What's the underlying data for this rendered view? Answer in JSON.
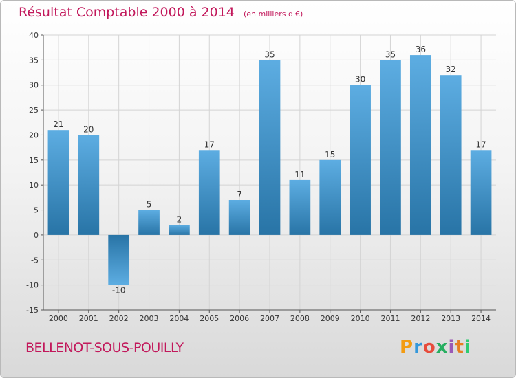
{
  "header": {
    "title": "Résultat Comptable 2000 à 2014",
    "unit": "(en milliers d'€)"
  },
  "footer": {
    "commune": "BELLENOT-SOUS-POUILLY",
    "logo_text": "Proxiti",
    "logo_colors": [
      "#f39c12",
      "#3498db",
      "#e74c3c",
      "#27ae60",
      "#9b59b6",
      "#e67e22",
      "#2ecc71"
    ]
  },
  "chart_data": {
    "type": "bar",
    "categories": [
      "2000",
      "2001",
      "2002",
      "2003",
      "2004",
      "2005",
      "2006",
      "2007",
      "2008",
      "2009",
      "2010",
      "2011",
      "2012",
      "2013",
      "2014"
    ],
    "values": [
      21,
      20,
      -10,
      5,
      2,
      17,
      7,
      35,
      11,
      15,
      30,
      35,
      36,
      32,
      17
    ],
    "data_labels": [
      "21",
      "20",
      "-10",
      "5",
      "2",
      "17",
      "7",
      "35",
      "11",
      "15",
      "30",
      "35",
      "36",
      "32",
      "17"
    ],
    "ylim": [
      -15,
      40
    ],
    "yticks": [
      -15,
      -10,
      -5,
      0,
      5,
      10,
      15,
      20,
      25,
      30,
      35,
      40
    ],
    "grid": true,
    "bar_color_light": "#5dade2",
    "bar_color_dark": "#2874a6"
  }
}
